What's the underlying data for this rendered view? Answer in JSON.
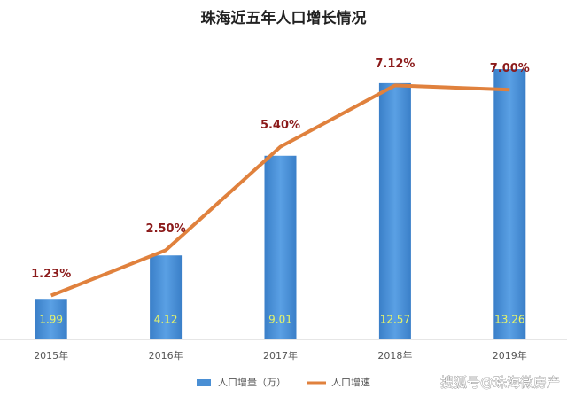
{
  "chart_data": {
    "type": "bar-line",
    "title": "珠海近五年人口增长情况",
    "categories": [
      "2015年",
      "2016年",
      "2017年",
      "2018年",
      "2019年"
    ],
    "series": [
      {
        "name": "人口增量（万）",
        "type": "bar",
        "color": "#4a8fd4",
        "values": [
          1.99,
          4.12,
          9.01,
          12.57,
          13.26
        ]
      },
      {
        "name": "人口增速",
        "type": "line",
        "axis": "y2",
        "color": "#e0813d",
        "values": [
          1.23,
          2.5,
          5.4,
          7.12,
          7.0
        ],
        "value_labels": [
          "1.23%",
          "2.50%",
          "5.40%",
          "7.12%",
          "7.00%"
        ]
      }
    ],
    "ylim": [
      0,
      14
    ],
    "y2lim": [
      0,
      8
    ],
    "grid": false,
    "watermark": "搜狐号@珠海微房产"
  }
}
